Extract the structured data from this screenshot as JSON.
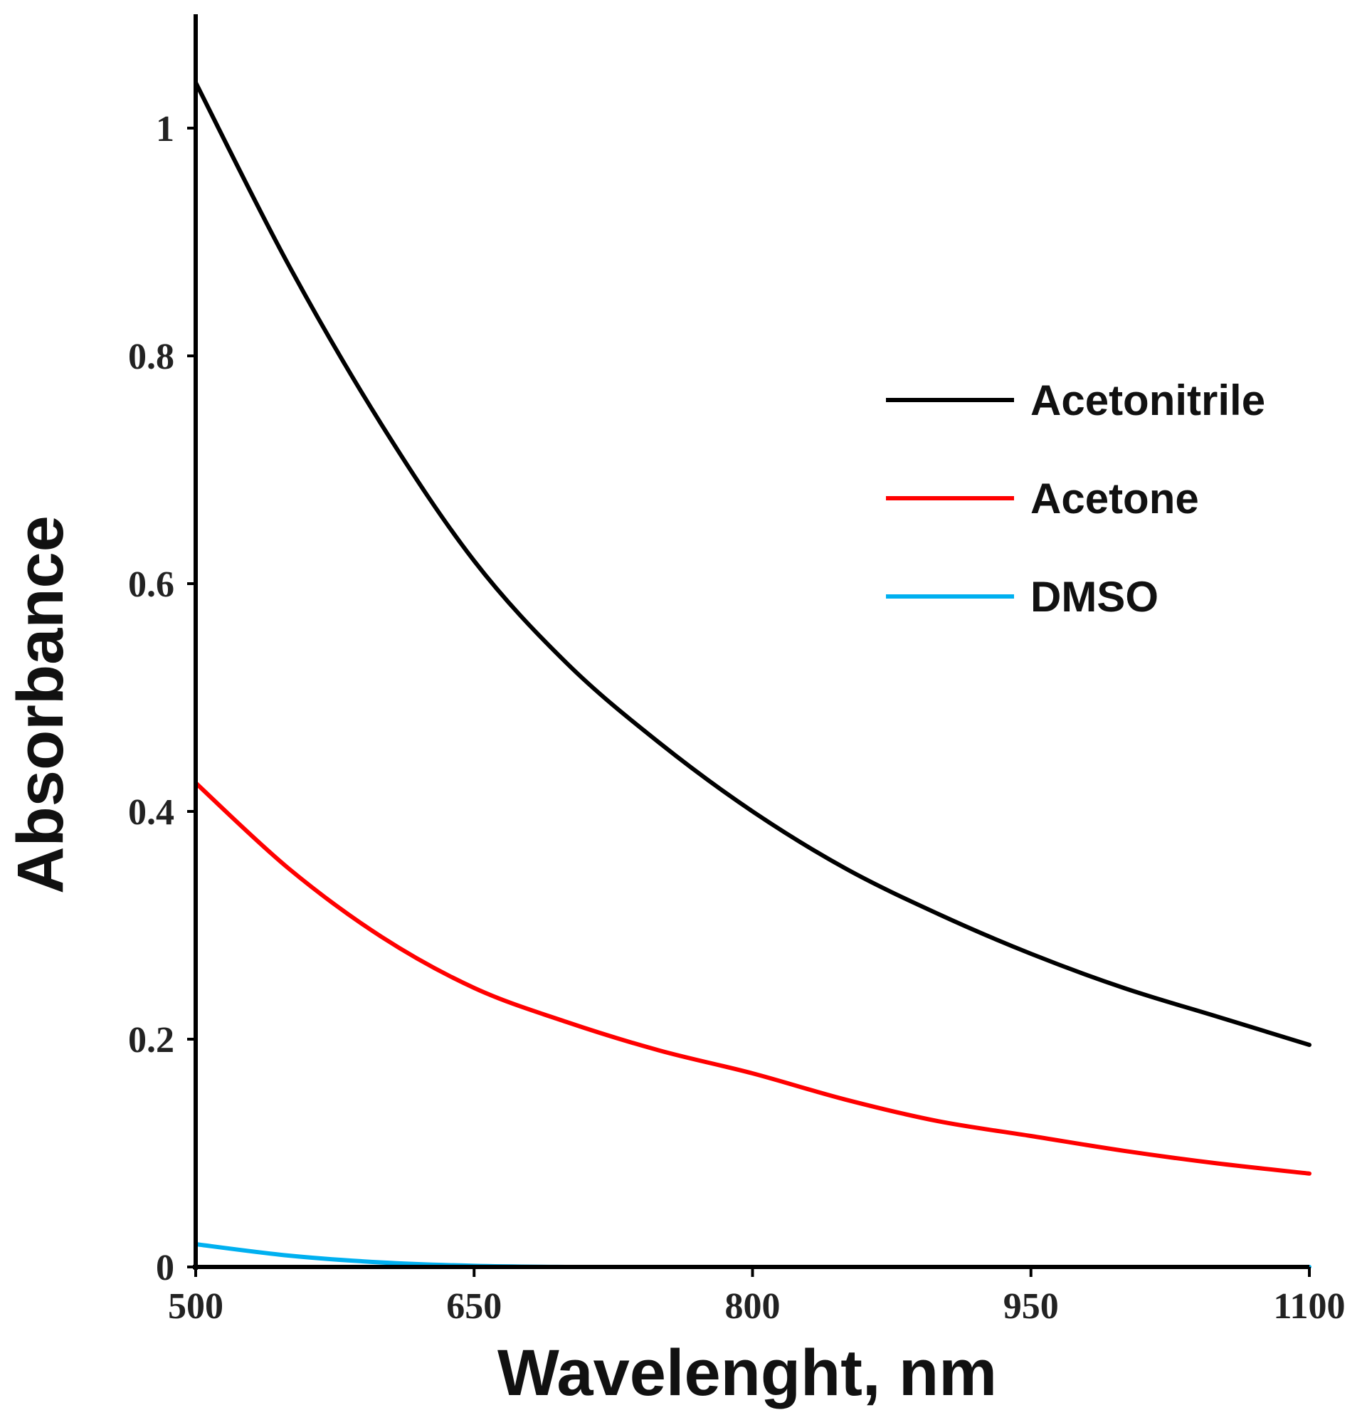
{
  "chart_data": {
    "type": "line",
    "title": "",
    "xlabel": "Wavelenght, nm",
    "ylabel": "Absorbance",
    "xlim": [
      500,
      1100
    ],
    "ylim": [
      0,
      1.1
    ],
    "xticks": [
      500,
      650,
      800,
      950,
      1100
    ],
    "xtick_labels": [
      "500",
      "650",
      "800",
      "950",
      "1100"
    ],
    "yticks": [
      0,
      0.2,
      0.4,
      0.6,
      0.8,
      1
    ],
    "ytick_labels": [
      "0",
      "0.2",
      "0.4",
      "0.6",
      "0.8",
      "1"
    ],
    "grid": false,
    "legend_position": "upper-right",
    "series": [
      {
        "name": "Acetonitrile",
        "color": "#000000",
        "x": [
          500,
          550,
          600,
          650,
          700,
          750,
          800,
          850,
          900,
          950,
          1000,
          1050,
          1100
        ],
        "y": [
          1.04,
          0.88,
          0.74,
          0.62,
          0.53,
          0.46,
          0.4,
          0.35,
          0.31,
          0.275,
          0.245,
          0.22,
          0.195
        ]
      },
      {
        "name": "Acetone",
        "color": "#ff0000",
        "x": [
          500,
          550,
          600,
          650,
          700,
          750,
          800,
          850,
          900,
          950,
          1000,
          1050,
          1100
        ],
        "y": [
          0.425,
          0.35,
          0.29,
          0.245,
          0.215,
          0.19,
          0.17,
          0.147,
          0.128,
          0.115,
          0.102,
          0.091,
          0.082
        ]
      },
      {
        "name": "DMSO",
        "color": "#00b0f0",
        "x": [
          500,
          550,
          600,
          650,
          700,
          750,
          800,
          1100
        ],
        "y": [
          0.02,
          0.01,
          0.004,
          0.001,
          0,
          0,
          0,
          0
        ]
      }
    ]
  }
}
